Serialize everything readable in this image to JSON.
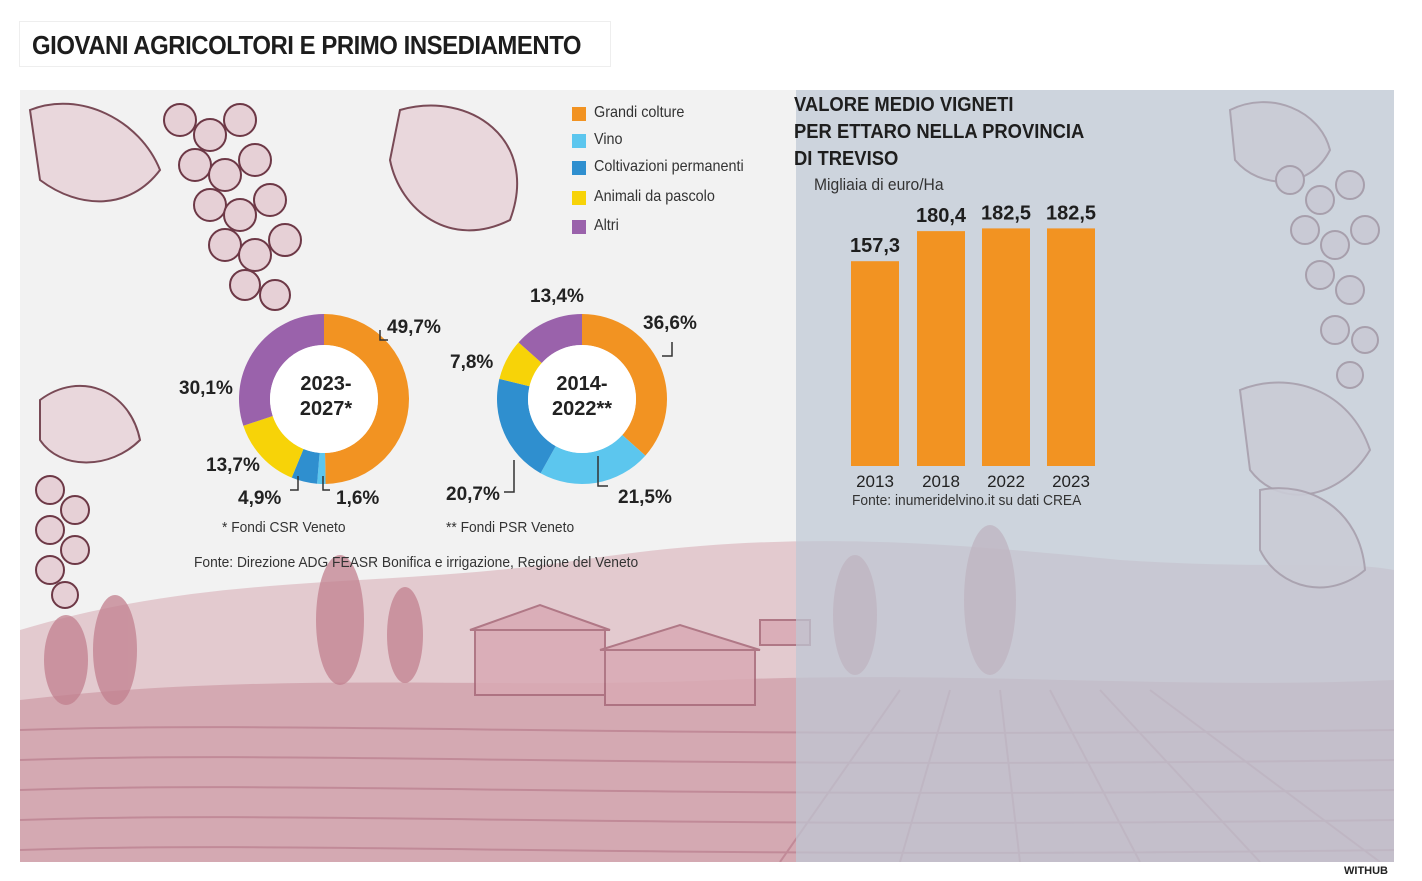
{
  "title": "GIOVANI AGRICOLTORI E PRIMO INSEDIAMENTO",
  "credit": "WITHUB",
  "colors": {
    "orange": "#f29322",
    "light_blue": "#5cc6ee",
    "blue": "#2f8fcf",
    "yellow": "#f7d308",
    "purple": "#9a62ab",
    "scenery": "#c98e9a",
    "panel": "#c3cad3"
  },
  "legend": [
    {
      "label": "Grandi colture",
      "color": "#f29322"
    },
    {
      "label": "Vino",
      "color": "#5cc6ee"
    },
    {
      "label": "Coltivazioni permanenti",
      "color": "#2f8fcf"
    },
    {
      "label": "Animali da pascolo",
      "color": "#f7d308"
    },
    {
      "label": "Altri",
      "color": "#9a62ab"
    }
  ],
  "donut_notes": {
    "left": "* Fondi CSR Veneto",
    "right": "** Fondi PSR Veneto",
    "source": "Fonte: Direzione ADG FEASR Bonifica e irrigazione, Regione del Veneto"
  },
  "bar_panel": {
    "title_lines": [
      "VALORE MEDIO VIGNETI",
      "PER ETTARO NELLA PROVINCIA",
      "DI TREVISO"
    ],
    "subtitle": "Migliaia di euro/Ha",
    "source": "Fonte: inumeridelvino.it su dati CREA"
  },
  "chart_data": [
    {
      "type": "pie",
      "center_label": [
        "2023-",
        "2027*"
      ],
      "slices": [
        {
          "category": "Grandi colture",
          "value": 49.7,
          "label": "49,7%"
        },
        {
          "category": "Vino",
          "value": 1.6,
          "label": "1,6%"
        },
        {
          "category": "Coltivazioni permanenti",
          "value": 4.9,
          "label": "4,9%"
        },
        {
          "category": "Animali da pascolo",
          "value": 13.7,
          "label": "13,7%"
        },
        {
          "category": "Altri",
          "value": 30.1,
          "label": "30,1%"
        }
      ]
    },
    {
      "type": "pie",
      "center_label": [
        "2014-",
        "2022**"
      ],
      "slices": [
        {
          "category": "Grandi colture",
          "value": 36.6,
          "label": "36,6%"
        },
        {
          "category": "Vino",
          "value": 21.5,
          "label": "21,5%"
        },
        {
          "category": "Coltivazioni permanenti",
          "value": 20.7,
          "label": "20,7%"
        },
        {
          "category": "Animali da pascolo",
          "value": 7.8,
          "label": "7,8%"
        },
        {
          "category": "Altri",
          "value": 13.4,
          "label": "13,4%"
        }
      ]
    },
    {
      "type": "bar",
      "title": "VALORE MEDIO VIGNETI PER ETTARO NELLA PROVINCIA DI TREVISO",
      "ylabel": "Migliaia di euro/Ha",
      "categories": [
        "2013",
        "2018",
        "2022",
        "2023"
      ],
      "values": [
        157.3,
        180.4,
        182.5,
        182.5
      ],
      "value_labels": [
        "157,3",
        "180,4",
        "182,5",
        "182,5"
      ],
      "color": "#f29322"
    }
  ]
}
